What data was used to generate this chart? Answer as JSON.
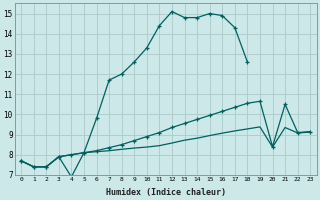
{
  "xlabel": "Humidex (Indice chaleur)",
  "bg_color": "#cce8e8",
  "grid_color": "#b0cece",
  "line_color": "#006060",
  "xlim": [
    -0.5,
    23.5
  ],
  "ylim": [
    7,
    15.5
  ],
  "xticks": [
    0,
    1,
    2,
    3,
    4,
    5,
    6,
    7,
    8,
    9,
    10,
    11,
    12,
    13,
    14,
    15,
    16,
    17,
    18,
    19,
    20,
    21,
    22,
    23
  ],
  "yticks": [
    7,
    8,
    9,
    10,
    11,
    12,
    13,
    14,
    15
  ],
  "line1_x": [
    0,
    1,
    2,
    3,
    4,
    5,
    6,
    7,
    8,
    9,
    10,
    11,
    12,
    13,
    14,
    15,
    16,
    17,
    18
  ],
  "line1_y": [
    7.7,
    7.4,
    7.4,
    7.9,
    6.9,
    8.1,
    9.8,
    11.7,
    12.0,
    12.6,
    13.3,
    14.4,
    15.1,
    14.8,
    14.8,
    15.0,
    14.9,
    14.3,
    12.6
  ],
  "line2_x": [
    0,
    1,
    2,
    3,
    4,
    5,
    6,
    7,
    8,
    9,
    10,
    11,
    12,
    13,
    14,
    15,
    16,
    17,
    18,
    19,
    20,
    21,
    22,
    23
  ],
  "line2_y": [
    7.7,
    7.4,
    7.4,
    7.9,
    8.0,
    8.1,
    8.2,
    8.35,
    8.5,
    8.7,
    8.9,
    9.1,
    9.35,
    9.55,
    9.75,
    9.95,
    10.15,
    10.35,
    10.55,
    10.65,
    8.4,
    10.5,
    9.1,
    9.15
  ],
  "line3_x": [
    0,
    1,
    2,
    3,
    4,
    5,
    6,
    7,
    8,
    9,
    10,
    11,
    12,
    13,
    14,
    15,
    16,
    17,
    18,
    19,
    20,
    21,
    22,
    23
  ],
  "line3_y": [
    7.7,
    7.4,
    7.4,
    7.9,
    8.0,
    8.1,
    8.15,
    8.2,
    8.27,
    8.33,
    8.38,
    8.45,
    8.58,
    8.72,
    8.82,
    8.95,
    9.07,
    9.18,
    9.28,
    9.38,
    8.38,
    9.35,
    9.08,
    9.12
  ]
}
